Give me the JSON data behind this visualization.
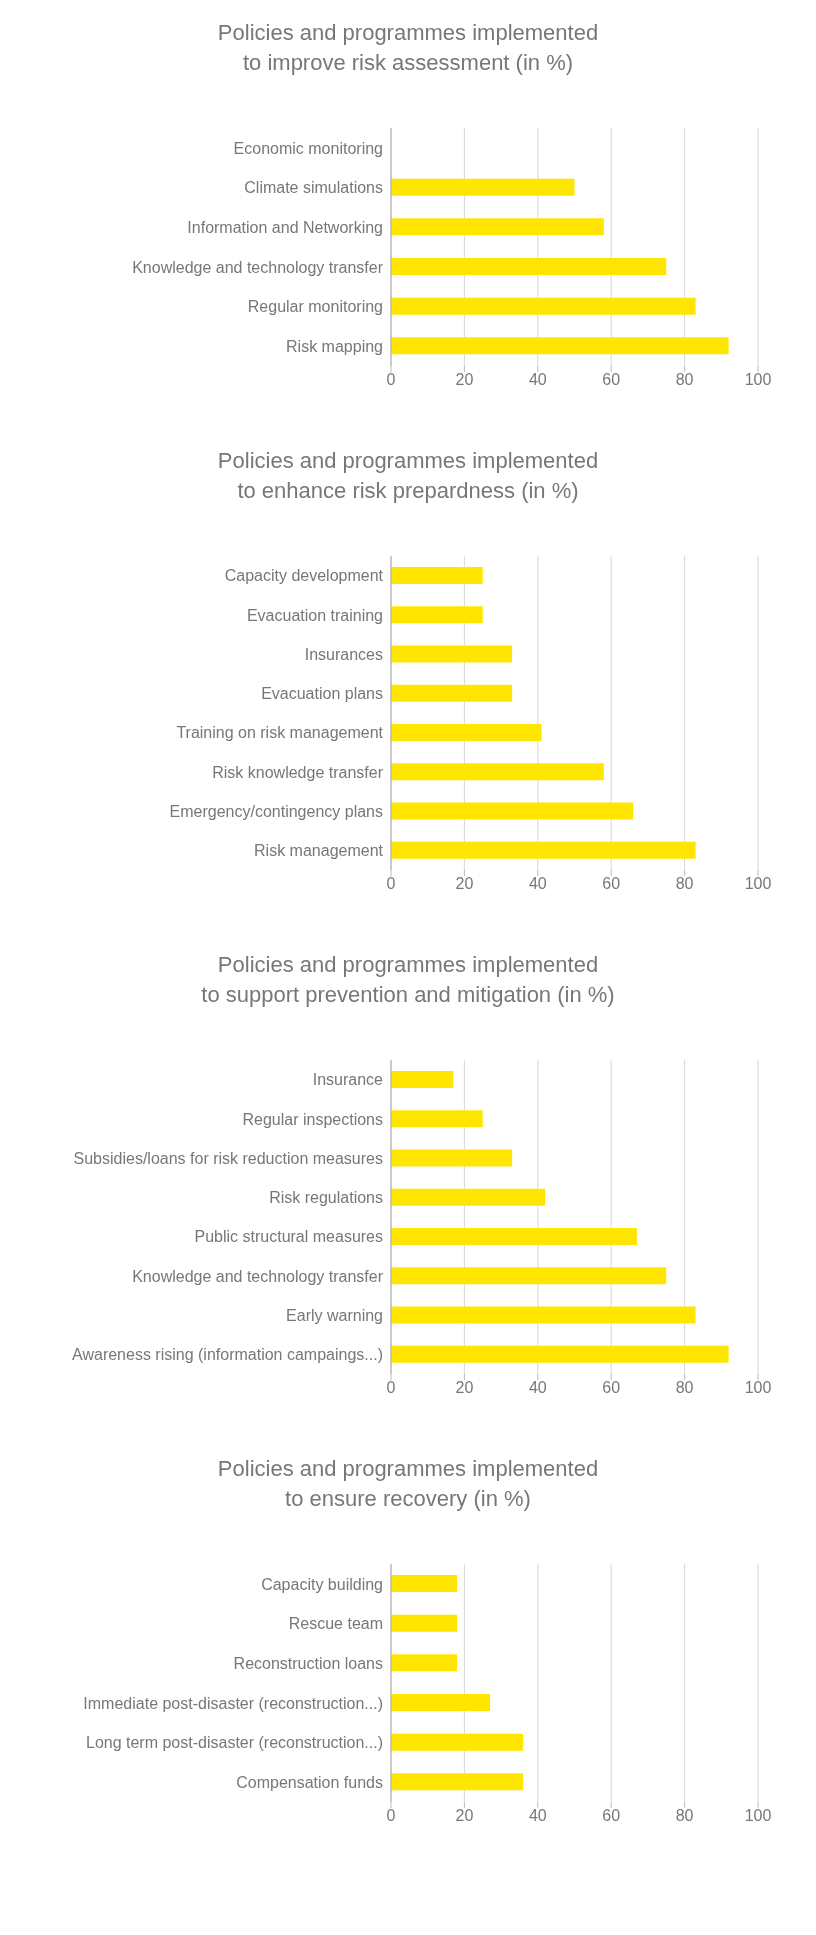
{
  "chart_data": [
    {
      "type": "bar",
      "orientation": "horizontal",
      "title": "Policies and programmes implemented\nto improve risk assessment (in %)",
      "categories": [
        "Economic monitoring",
        "Climate simulations",
        "Information and Networking",
        "Knowledge and technology transfer",
        "Regular monitoring",
        "Risk mapping"
      ],
      "values": [
        0,
        50,
        58,
        75,
        83,
        92
      ],
      "color": "#ffe600",
      "xlim": [
        0,
        100
      ],
      "xticks": [
        0,
        20,
        40,
        60,
        80,
        100
      ],
      "grid": "x"
    },
    {
      "type": "bar",
      "orientation": "horizontal",
      "title": "Policies and programmes implemented\nto enhance risk prepardness (in %)",
      "categories": [
        "Capacity development",
        "Evacuation training",
        "Insurances",
        "Evacuation plans",
        "Training on risk management",
        "Risk knowledge transfer",
        "Emergency/contingency plans",
        "Risk management"
      ],
      "values": [
        25,
        25,
        33,
        33,
        41,
        58,
        66,
        83
      ],
      "color": "#ffe600",
      "xlim": [
        0,
        100
      ],
      "xticks": [
        0,
        20,
        40,
        60,
        80,
        100
      ],
      "grid": "x"
    },
    {
      "type": "bar",
      "orientation": "horizontal",
      "title": "Policies and programmes implemented\nto support prevention and mitigation (in %)",
      "categories": [
        "Insurance",
        "Regular inspections",
        "Subsidies/loans for risk reduction measures",
        "Risk regulations",
        "Public structural measures",
        "Knowledge and technology transfer",
        "Early warning",
        "Awareness rising (information campaings...)"
      ],
      "values": [
        17,
        25,
        33,
        42,
        67,
        75,
        83,
        92
      ],
      "color": "#ffe600",
      "xlim": [
        0,
        100
      ],
      "xticks": [
        0,
        20,
        40,
        60,
        80,
        100
      ],
      "grid": "x"
    },
    {
      "type": "bar",
      "orientation": "horizontal",
      "title": "Policies and programmes implemented\nto ensure recovery (in %)",
      "categories": [
        "Capacity building",
        "Rescue team",
        "Reconstruction loans",
        "Immediate post-disaster (reconstruction...)",
        "Long term post-disaster (reconstruction...)",
        "Compensation funds"
      ],
      "values": [
        18,
        18,
        18,
        27,
        36,
        36
      ],
      "color": "#ffe600",
      "xlim": [
        0,
        100
      ],
      "xticks": [
        0,
        20,
        40,
        60,
        80,
        100
      ],
      "grid": "x"
    }
  ]
}
